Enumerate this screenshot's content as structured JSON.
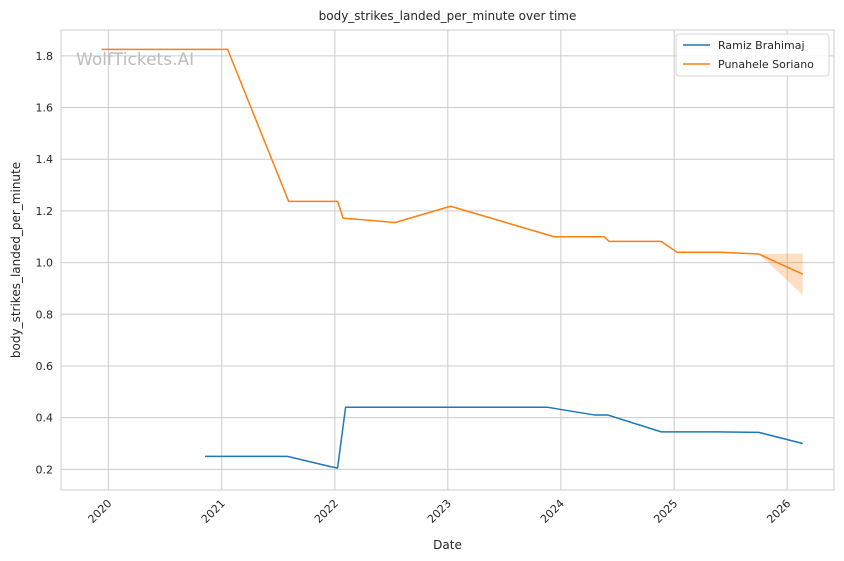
{
  "chart_data": {
    "type": "line",
    "title": "body_strikes_landed_per_minute over time",
    "xlabel": "Date",
    "ylabel": "body_strikes_landed_per_minute",
    "watermark": "WolfTickets.AI",
    "x_axis_kind": "date",
    "xlim": [
      "2019-08-01",
      "2026-06-01"
    ],
    "ylim": [
      0.12,
      1.9
    ],
    "x_ticks": [
      "2020",
      "2021",
      "2022",
      "2023",
      "2024",
      "2025",
      "2026"
    ],
    "y_ticks": [
      0.2,
      0.4,
      0.6,
      0.8,
      1.0,
      1.2,
      1.4,
      1.6,
      1.8
    ],
    "grid": true,
    "legend_position": "top-right",
    "series": [
      {
        "name": "Ramiz Brahimaj",
        "color": "#1f77b4",
        "x": [
          "2020-11-08",
          "2021-08-01",
          "2021-12-20",
          "2022-01-10",
          "2022-02-05",
          "2023-11-20",
          "2024-04-20",
          "2024-06-01",
          "2024-11-20",
          "2025-05-20",
          "2025-10-01",
          "2026-02-20"
        ],
        "y": [
          0.25,
          0.25,
          0.21,
          0.205,
          0.44,
          0.44,
          0.41,
          0.41,
          0.345,
          0.345,
          0.343,
          0.3
        ]
      },
      {
        "name": "Punahele Soriano",
        "color": "#ff7f0e",
        "x": [
          "2019-12-10",
          "2021-01-20",
          "2021-08-05",
          "2022-01-10",
          "2022-01-28",
          "2022-07-15",
          "2023-01-10",
          "2023-12-10",
          "2024-05-20",
          "2024-06-05",
          "2024-11-20",
          "2025-01-10",
          "2025-06-01",
          "2025-10-01",
          "2026-02-20"
        ],
        "y": [
          1.825,
          1.825,
          1.237,
          1.237,
          1.172,
          1.155,
          1.218,
          1.1,
          1.1,
          1.082,
          1.082,
          1.04,
          1.04,
          1.033,
          0.955
        ],
        "band": {
          "x": [
            "2025-10-01",
            "2026-02-20"
          ],
          "lower": [
            1.033,
            0.875
          ],
          "upper": [
            1.033,
            1.035
          ]
        }
      }
    ]
  }
}
